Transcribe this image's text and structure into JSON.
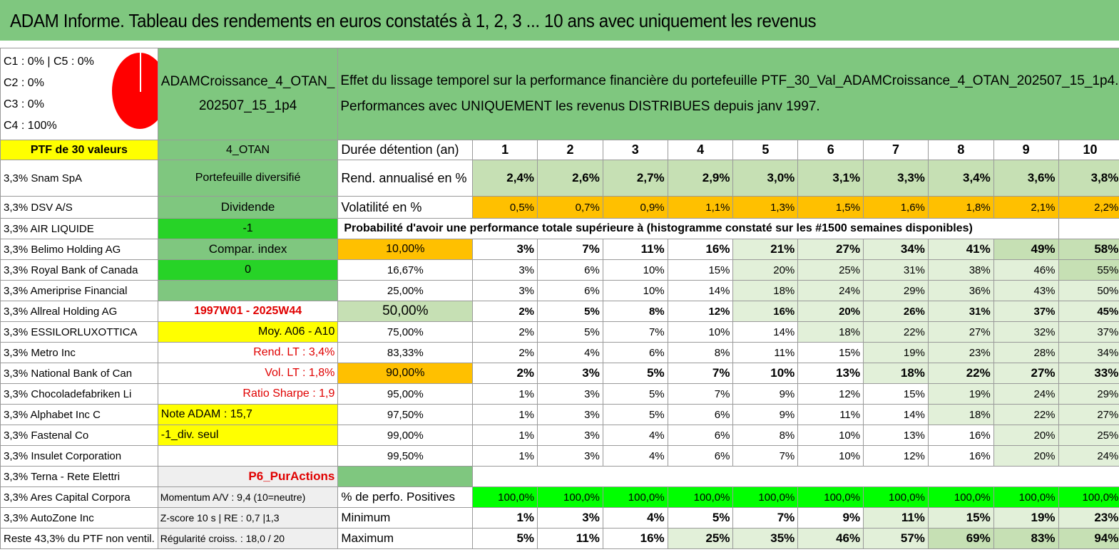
{
  "title": "ADAM Informe. Tableau des rendements en euros constatés à 1, 2, 3 ... 10 ans avec uniquement les revenus",
  "colors": {
    "header_green": "#7fc77f",
    "yellow": "#ffff00",
    "bright_green": "#27d327",
    "orange": "#ffc000",
    "pie_red": "#ff0000"
  },
  "legend": {
    "line1": "C1 : 0% | C5 : 0%",
    "line2": "C2 : 0%",
    "line3": "C3 : 0%",
    "line4": "C4 : 100%"
  },
  "portfolio": {
    "name": "ADAMCroissance_4_OTAN_202507_15_1p4",
    "name_line1": "ADAMCroissance_4_OTAN_",
    "name_line2": "202507_15_1p4",
    "description_line1": "Effet du lissage temporel sur la performance financière du portefeuille PTF_30_Val_ADAMCroissance_4_OTAN_202507_15_1p4.",
    "description_line2": "Performances avec UNIQUEMENT les revenus DISTRIBUES depuis janv 1997.",
    "count_label": "PTF de 30 valeurs",
    "code": "4_OTAN"
  },
  "headers": {
    "duration_label": "Durée détention (an)",
    "years": [
      "1",
      "2",
      "3",
      "4",
      "5",
      "6",
      "7",
      "8",
      "9",
      "10"
    ]
  },
  "returns": {
    "label": "Rend. annualisé en %",
    "values": [
      "2,4%",
      "2,6%",
      "2,7%",
      "2,9%",
      "3,0%",
      "3,1%",
      "3,3%",
      "3,4%",
      "3,6%",
      "3,8%"
    ]
  },
  "volatility": {
    "label": "Volatilité en %",
    "values": [
      "0,5%",
      "0,7%",
      "0,9%",
      "1,1%",
      "1,3%",
      "1,5%",
      "1,6%",
      "1,8%",
      "2,1%",
      "2,2%"
    ]
  },
  "probability_title": "Probabilité d'avoir une performance totale supérieure à (histogramme constaté sur les #1500 semaines disponibles)",
  "middle": {
    "diversified": "Portefeuille diversifié",
    "dividend": "Dividende",
    "minus_one": "-1",
    "compar_index": "Compar. index",
    "zero": "0",
    "period": "1997W01 - 2025W44",
    "moy": "Moy. A06 - A10",
    "rend_lt": "Rend. LT : 3,4%",
    "vol_lt": "Vol. LT : 1,8%",
    "sharpe": "Ratio Sharpe : 1,9",
    "note": "Note ADAM : 15,7",
    "div_seul": "-1_div. seul",
    "p6": "P6_PurActions",
    "momentum": "Momentum A/V : 9,4 (10=neutre)",
    "zscore": "Z-score 10 s | RE : 0,7 |1,3",
    "regularite": "Régularité croiss. : 18,0 / 20"
  },
  "holdings": [
    "3,3% Snam SpA",
    "3,3% DSV A/S",
    "3,3% AIR LIQUIDE",
    "3,3% Belimo Holding AG",
    "3,3% Royal Bank of Canada",
    "3,3% Ameriprise Financial",
    "3,3% Allreal Holding AG",
    "3,3% ESSILORLUXOTTICA",
    "3,3% Metro Inc",
    "3,3% National Bank of Can",
    "3,3% Chocoladefabriken Li",
    "3,3% Alphabet Inc C",
    "3,3% Fastenal Co",
    "3,3% Insulet Corporation",
    "3,3% Terna - Rete Elettri",
    "3,3% Ares Capital Corpora",
    "3,3% AutoZone Inc",
    "Reste 43,3% du PTF non ventil."
  ],
  "probabilities": [
    {
      "threshold": "10,00%",
      "values": [
        "3%",
        "7%",
        "11%",
        "16%",
        "21%",
        "27%",
        "34%",
        "41%",
        "49%",
        "58%"
      ]
    },
    {
      "threshold": "16,67%",
      "values": [
        "3%",
        "6%",
        "10%",
        "15%",
        "20%",
        "25%",
        "31%",
        "38%",
        "46%",
        "55%"
      ]
    },
    {
      "threshold": "25,00%",
      "values": [
        "3%",
        "6%",
        "10%",
        "14%",
        "18%",
        "24%",
        "29%",
        "36%",
        "43%",
        "50%"
      ]
    },
    {
      "threshold": "50,00%",
      "values": [
        "2%",
        "5%",
        "8%",
        "12%",
        "16%",
        "20%",
        "26%",
        "31%",
        "37%",
        "45%"
      ]
    },
    {
      "threshold": "75,00%",
      "values": [
        "2%",
        "5%",
        "7%",
        "10%",
        "14%",
        "18%",
        "22%",
        "27%",
        "32%",
        "37%"
      ]
    },
    {
      "threshold": "83,33%",
      "values": [
        "2%",
        "4%",
        "6%",
        "8%",
        "11%",
        "15%",
        "19%",
        "23%",
        "28%",
        "34%"
      ]
    },
    {
      "threshold": "90,00%",
      "values": [
        "2%",
        "3%",
        "5%",
        "7%",
        "10%",
        "13%",
        "18%",
        "22%",
        "27%",
        "33%"
      ]
    },
    {
      "threshold": "95,00%",
      "values": [
        "1%",
        "3%",
        "5%",
        "7%",
        "9%",
        "12%",
        "15%",
        "19%",
        "24%",
        "29%"
      ]
    },
    {
      "threshold": "97,50%",
      "values": [
        "1%",
        "3%",
        "5%",
        "6%",
        "9%",
        "11%",
        "14%",
        "18%",
        "22%",
        "27%"
      ]
    },
    {
      "threshold": "99,00%",
      "values": [
        "1%",
        "3%",
        "4%",
        "6%",
        "8%",
        "10%",
        "13%",
        "16%",
        "20%",
        "25%"
      ]
    },
    {
      "threshold": "99,50%",
      "values": [
        "1%",
        "3%",
        "4%",
        "6%",
        "7%",
        "10%",
        "12%",
        "16%",
        "20%",
        "24%"
      ]
    }
  ],
  "positives": {
    "label": "% de perfo. Positives",
    "values": [
      "100,0%",
      "100,0%",
      "100,0%",
      "100,0%",
      "100,0%",
      "100,0%",
      "100,0%",
      "100,0%",
      "100,0%",
      "100,0%"
    ]
  },
  "minimum": {
    "label": "Minimum",
    "values": [
      "1%",
      "3%",
      "4%",
      "5%",
      "7%",
      "9%",
      "11%",
      "15%",
      "19%",
      "23%"
    ]
  },
  "maximum": {
    "label": "Maximum",
    "values": [
      "5%",
      "11%",
      "16%",
      "25%",
      "35%",
      "46%",
      "57%",
      "69%",
      "83%",
      "94%"
    ]
  }
}
